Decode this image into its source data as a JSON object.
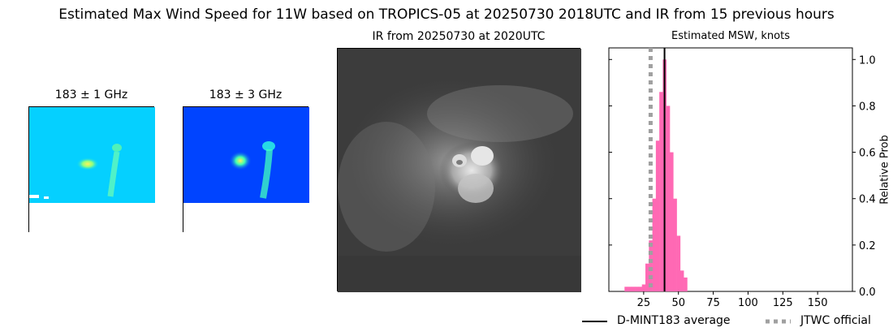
{
  "figure": {
    "title": "Estimated Max Wind Speed for 11W based on TROPICS-05 at 20250730 2018UTC and IR from 15 previous hours"
  },
  "panels": {
    "mw1": {
      "title": "183 ± 1 GHz"
    },
    "mw2": {
      "title": "183 ± 3 GHz"
    },
    "ir": {
      "title": "IR from 20250730 at 2020UTC"
    }
  },
  "legend": {
    "average_label": "D-MINT183 average",
    "official_label": "JTWC official"
  },
  "colors": {
    "hist": "#ff69b4",
    "average_line": "#000000",
    "official_line": "#a0a0a0",
    "mw1_bg": "#00d4ff",
    "mw2_bg": "#0044ff"
  },
  "chart_data": {
    "type": "bar",
    "title": "Estimated MSW, knots",
    "ylabel": "Relative Prob",
    "xlim": [
      0,
      175
    ],
    "ylim": [
      0,
      1.05
    ],
    "xticks": [
      "25",
      "50",
      "75",
      "100",
      "125",
      "150"
    ],
    "yticks": [
      "0.0",
      "0.2",
      "0.4",
      "0.6",
      "0.8",
      "1.0"
    ],
    "bin_width": 2.5,
    "bins": [
      {
        "x": 12.5,
        "y": 0.02
      },
      {
        "x": 15,
        "y": 0.02
      },
      {
        "x": 17.5,
        "y": 0.02
      },
      {
        "x": 20,
        "y": 0.02
      },
      {
        "x": 22.5,
        "y": 0.02
      },
      {
        "x": 25,
        "y": 0.03
      },
      {
        "x": 27.5,
        "y": 0.12
      },
      {
        "x": 30,
        "y": 0.22
      },
      {
        "x": 32.5,
        "y": 0.4
      },
      {
        "x": 35,
        "y": 0.65
      },
      {
        "x": 37.5,
        "y": 0.86
      },
      {
        "x": 40,
        "y": 1.0
      },
      {
        "x": 42.5,
        "y": 0.8
      },
      {
        "x": 45,
        "y": 0.6
      },
      {
        "x": 47.5,
        "y": 0.4
      },
      {
        "x": 50,
        "y": 0.24
      },
      {
        "x": 52.5,
        "y": 0.09
      },
      {
        "x": 55,
        "y": 0.06
      }
    ],
    "average": 40,
    "official": 30
  }
}
